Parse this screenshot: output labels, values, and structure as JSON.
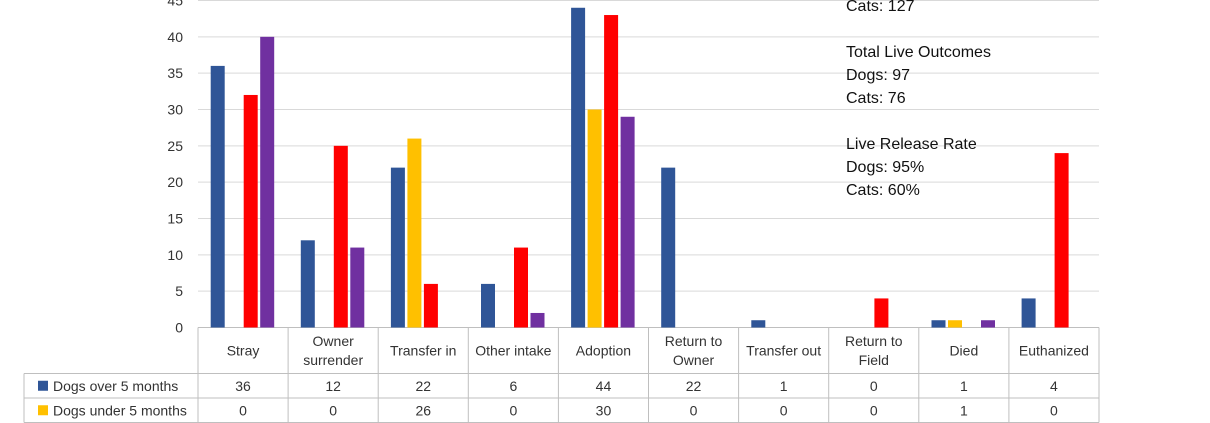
{
  "chart_data": {
    "type": "bar",
    "categories": [
      "Stray",
      "Owner surrender",
      "Transfer in",
      "Other intake",
      "Adoption",
      "Return to Owner",
      "Transfer out",
      "Return to Field",
      "Died",
      "Euthanized"
    ],
    "category_lines": [
      [
        "Stray"
      ],
      [
        "Owner",
        "surrender"
      ],
      [
        "Transfer in"
      ],
      [
        "Other intake"
      ],
      [
        "Adoption"
      ],
      [
        "Return to",
        "Owner"
      ],
      [
        "Transfer out"
      ],
      [
        "Return to",
        "Field"
      ],
      [
        "Died"
      ],
      [
        "Euthanized"
      ]
    ],
    "ylim": [
      0,
      45
    ],
    "yticks": [
      0,
      5,
      10,
      15,
      20,
      25,
      30,
      35,
      40,
      45
    ],
    "grid": true,
    "series": [
      {
        "name": "Dogs over 5 months",
        "color": "#2f5597",
        "values": [
          36,
          12,
          22,
          6,
          44,
          22,
          1,
          0,
          1,
          4
        ]
      },
      {
        "name": "Dogs under 5 months",
        "color": "#ffc000",
        "values": [
          0,
          0,
          26,
          0,
          30,
          0,
          0,
          0,
          1,
          0
        ]
      },
      {
        "color": "#ff0000",
        "values": [
          32,
          25,
          6,
          11,
          43,
          0,
          0,
          4,
          0,
          24
        ]
      },
      {
        "color": "#7030a0",
        "values": [
          40,
          11,
          0,
          2,
          29,
          0,
          0,
          0,
          1,
          0
        ]
      }
    ],
    "table_rows": [
      {
        "name": "Dogs over 5 months",
        "color": "#2f5597",
        "cells": [
          "36",
          "12",
          "22",
          "6",
          "44",
          "22",
          "1",
          "0",
          "1",
          "4"
        ]
      },
      {
        "name": "Dogs under 5 months",
        "color": "#ffc000",
        "cells": [
          "0",
          "0",
          "26",
          "0",
          "30",
          "0",
          "0",
          "0",
          "1",
          "0"
        ]
      }
    ],
    "annotations": {
      "top_line": "Cats: 127",
      "live_outcomes": {
        "heading": "Total Live Outcomes",
        "dogs": "Dogs: 97",
        "cats": "Cats: 76"
      },
      "live_release": {
        "heading": "Live Release Rate",
        "dogs": "Dogs: 95%",
        "cats": "Cats: 60%"
      }
    }
  }
}
